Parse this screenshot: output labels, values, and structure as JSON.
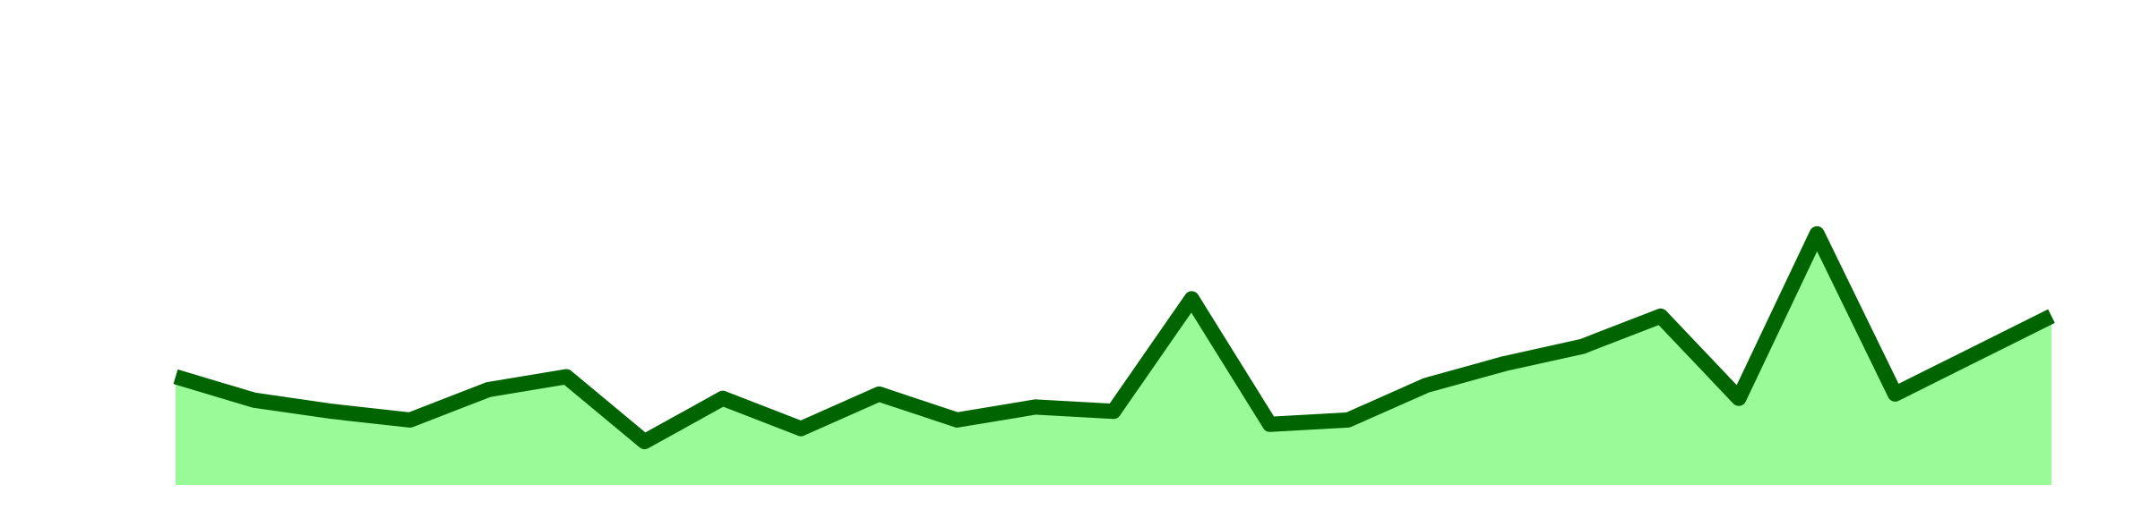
{
  "chart_data": {
    "type": "area",
    "title": "",
    "xlabel": "",
    "ylabel": "",
    "x": [
      1,
      2,
      3,
      4,
      5,
      6,
      7,
      8,
      9,
      10,
      11,
      12,
      13,
      14,
      15,
      16,
      17,
      18,
      19,
      20,
      21,
      22,
      23,
      24,
      25
    ],
    "series": [
      {
        "values": [
          12.5,
          9.8,
          8.5,
          7.5,
          11.0,
          12.5,
          5.0,
          10.0,
          6.5,
          10.5,
          7.5,
          9.0,
          8.5,
          21.5,
          7.0,
          7.5,
          11.5,
          14.0,
          16.0,
          19.5,
          10.0,
          29.0,
          10.5,
          15.0,
          19.5
        ]
      }
    ],
    "ylim": [
      0,
      56
    ],
    "grid": false,
    "legend": "none",
    "colors": {
      "line": "#006400",
      "fill": "#98FB98"
    }
  }
}
